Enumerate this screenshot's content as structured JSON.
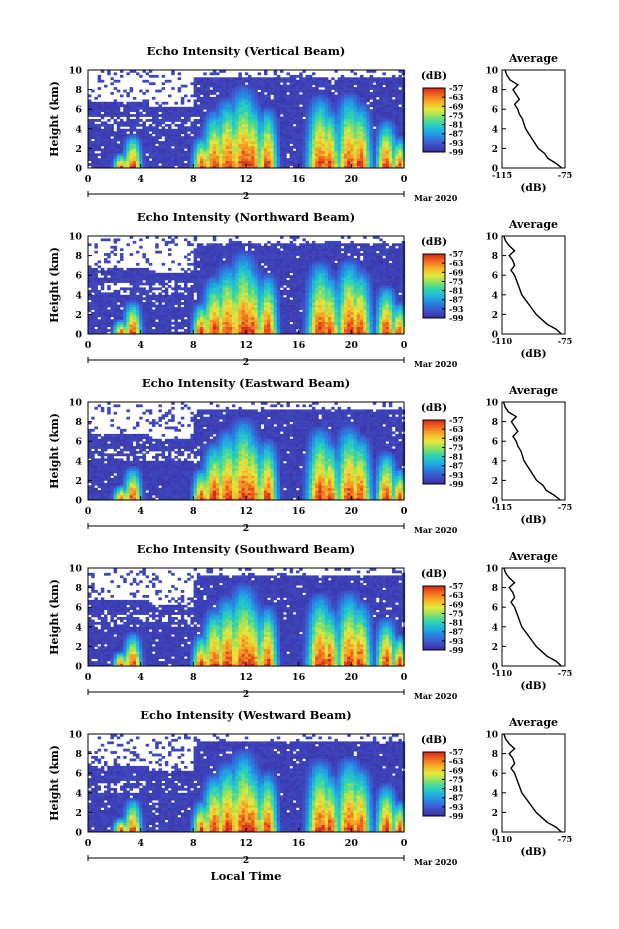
{
  "figure": {
    "x_axis_title": "Local Time",
    "date_label": "Mar 2020",
    "average_title": "Average",
    "colorbar_unit": "(dB)",
    "average_xlabel": "(dB)"
  },
  "colormap": [
    "#3a2ea0",
    "#3f4fc8",
    "#2a7fe0",
    "#1fb2e0",
    "#2fd6b0",
    "#8ee060",
    "#e6e83a",
    "#f7b02a",
    "#f26a20",
    "#d42818"
  ],
  "chart_data": [
    {
      "type": "heatmap",
      "title": "Echo Intensity (Vertical Beam)",
      "ylabel": "Height (km)",
      "x_ticks": [
        "0",
        "4",
        "8",
        "12",
        "16",
        "20",
        "0"
      ],
      "x_range": [
        0,
        24
      ],
      "y_ticks": [
        "0",
        "2",
        "4",
        "6",
        "8",
        "10"
      ],
      "ylim": [
        0,
        10
      ],
      "date_tick": "2",
      "colorbar": {
        "label": "(dB)",
        "ticks": [
          "-57",
          "-63",
          "-69",
          "-75",
          "-81",
          "-87",
          "-93",
          "-99"
        ],
        "range": [
          -99,
          -57
        ]
      },
      "plumes": [
        [
          2.5,
          1.6,
          0.5
        ],
        [
          3.4,
          3.6,
          0.6
        ],
        [
          8.6,
          3.4,
          0.6
        ],
        [
          9.6,
          6.2,
          0.8
        ],
        [
          10.6,
          7.5,
          0.9
        ],
        [
          11.8,
          8.8,
          1.0
        ],
        [
          12.4,
          7.2,
          0.8
        ],
        [
          13.6,
          6.5,
          0.7
        ],
        [
          17.6,
          7.8,
          0.9
        ],
        [
          18.3,
          6.4,
          0.7
        ],
        [
          19.8,
          8.0,
          0.9
        ],
        [
          20.6,
          7.0,
          0.8
        ],
        [
          22.6,
          5.2,
          0.7
        ],
        [
          23.6,
          3.4,
          0.5
        ]
      ],
      "average_profile": {
        "title": "Average",
        "xlabel": "(dB)",
        "x_ticks": [
          "-115",
          "-75"
        ],
        "xlim": [
          -115,
          -75
        ],
        "y_ticks": [
          "0",
          "2",
          "4",
          "6",
          "8",
          "10"
        ],
        "ylim": [
          0,
          10
        ],
        "height_km": [
          0,
          0.5,
          1,
          1.5,
          2,
          2.5,
          3,
          3.5,
          4,
          4.5,
          5,
          5.5,
          6,
          6.5,
          7,
          7.5,
          8,
          8.5,
          9,
          9.5,
          10
        ],
        "db": [
          -77,
          -81,
          -86,
          -88,
          -92,
          -94,
          -96,
          -98,
          -100,
          -101,
          -102,
          -104,
          -105,
          -107,
          -104,
          -106,
          -108,
          -105,
          -110,
          -112,
          -113
        ]
      }
    },
    {
      "type": "heatmap",
      "title": "Echo Intensity (Northward Beam)",
      "ylabel": "Height (km)",
      "x_ticks": [
        "0",
        "4",
        "8",
        "12",
        "16",
        "20",
        "0"
      ],
      "x_range": [
        0,
        24
      ],
      "y_ticks": [
        "0",
        "2",
        "4",
        "6",
        "8",
        "10"
      ],
      "ylim": [
        0,
        10
      ],
      "date_tick": "2",
      "colorbar": {
        "label": "(dB)",
        "ticks": [
          "-57",
          "-63",
          "-69",
          "-75",
          "-81",
          "-87",
          "-93",
          "-99"
        ],
        "range": [
          -99,
          -57
        ]
      },
      "plumes": [
        [
          2.5,
          1.6,
          0.5
        ],
        [
          3.4,
          3.6,
          0.6
        ],
        [
          8.6,
          3.4,
          0.6
        ],
        [
          9.6,
          6.2,
          0.8
        ],
        [
          10.6,
          7.5,
          0.9
        ],
        [
          11.8,
          8.8,
          1.0
        ],
        [
          12.4,
          7.2,
          0.8
        ],
        [
          13.6,
          6.5,
          0.7
        ],
        [
          17.6,
          7.8,
          0.9
        ],
        [
          18.3,
          6.4,
          0.7
        ],
        [
          19.8,
          8.0,
          0.9
        ],
        [
          20.6,
          7.0,
          0.8
        ],
        [
          22.6,
          5.2,
          0.7
        ],
        [
          23.6,
          3.4,
          0.5
        ]
      ],
      "average_profile": {
        "title": "Average",
        "xlabel": "(dB)",
        "x_ticks": [
          "-110",
          "-75"
        ],
        "xlim": [
          -110,
          -75
        ],
        "y_ticks": [
          "0",
          "2",
          "4",
          "6",
          "8",
          "10"
        ],
        "ylim": [
          0,
          10
        ],
        "height_km": [
          0,
          0.5,
          1,
          1.5,
          2,
          2.5,
          3,
          3.5,
          4,
          4.5,
          5,
          5.5,
          6,
          6.5,
          7,
          7.5,
          8,
          8.5,
          9,
          9.5,
          10
        ],
        "db": [
          -77,
          -80,
          -85,
          -88,
          -91,
          -93,
          -95,
          -97,
          -99,
          -100,
          -101,
          -102,
          -103,
          -105,
          -103,
          -104,
          -106,
          -103,
          -106,
          -108,
          -109
        ]
      }
    },
    {
      "type": "heatmap",
      "title": "Echo Intensity (Eastward Beam)",
      "ylabel": "Height (km)",
      "x_ticks": [
        "0",
        "4",
        "8",
        "12",
        "16",
        "20",
        "0"
      ],
      "x_range": [
        0,
        24
      ],
      "y_ticks": [
        "0",
        "2",
        "4",
        "6",
        "8",
        "10"
      ],
      "ylim": [
        0,
        10
      ],
      "date_tick": "2",
      "colorbar": {
        "label": "(dB)",
        "ticks": [
          "-57",
          "-63",
          "-69",
          "-75",
          "-81",
          "-87",
          "-93",
          "-99"
        ],
        "range": [
          -99,
          -57
        ]
      },
      "plumes": [
        [
          2.5,
          1.6,
          0.5
        ],
        [
          3.4,
          3.6,
          0.6
        ],
        [
          8.6,
          3.4,
          0.6
        ],
        [
          9.6,
          6.2,
          0.8
        ],
        [
          10.6,
          7.5,
          0.9
        ],
        [
          11.8,
          8.8,
          1.0
        ],
        [
          12.4,
          7.2,
          0.8
        ],
        [
          13.6,
          6.5,
          0.7
        ],
        [
          17.6,
          7.8,
          0.9
        ],
        [
          18.3,
          6.4,
          0.7
        ],
        [
          19.8,
          8.0,
          0.9
        ],
        [
          20.6,
          7.0,
          0.8
        ],
        [
          22.6,
          5.2,
          0.7
        ],
        [
          23.6,
          3.4,
          0.5
        ]
      ],
      "average_profile": {
        "title": "Average",
        "xlabel": "(dB)",
        "x_ticks": [
          "-115",
          "-75"
        ],
        "xlim": [
          -115,
          -75
        ],
        "y_ticks": [
          "0",
          "2",
          "4",
          "6",
          "8",
          "10"
        ],
        "ylim": [
          0,
          10
        ],
        "height_km": [
          0,
          0.5,
          1,
          1.5,
          2,
          2.5,
          3,
          3.5,
          4,
          4.5,
          5,
          5.5,
          6,
          6.5,
          7,
          7.5,
          8,
          8.5,
          9,
          9.5,
          10
        ],
        "db": [
          -78,
          -82,
          -87,
          -89,
          -93,
          -95,
          -97,
          -99,
          -101,
          -102,
          -103,
          -105,
          -106,
          -108,
          -105,
          -107,
          -109,
          -106,
          -111,
          -113,
          -114
        ]
      }
    },
    {
      "type": "heatmap",
      "title": "Echo Intensity (Southward Beam)",
      "ylabel": "Height (km)",
      "x_ticks": [
        "0",
        "4",
        "8",
        "12",
        "16",
        "20",
        "0"
      ],
      "x_range": [
        0,
        24
      ],
      "y_ticks": [
        "0",
        "2",
        "4",
        "6",
        "8",
        "10"
      ],
      "ylim": [
        0,
        10
      ],
      "date_tick": "2",
      "colorbar": {
        "label": "(dB)",
        "ticks": [
          "-57",
          "-63",
          "-69",
          "-75",
          "-81",
          "-87",
          "-93",
          "-99"
        ],
        "range": [
          -99,
          -57
        ]
      },
      "plumes": [
        [
          2.5,
          1.6,
          0.5
        ],
        [
          3.4,
          3.6,
          0.6
        ],
        [
          8.6,
          3.4,
          0.6
        ],
        [
          9.6,
          6.2,
          0.8
        ],
        [
          10.6,
          7.5,
          0.9
        ],
        [
          11.8,
          8.8,
          1.0
        ],
        [
          12.4,
          7.2,
          0.8
        ],
        [
          13.6,
          6.5,
          0.7
        ],
        [
          17.6,
          7.8,
          0.9
        ],
        [
          18.3,
          6.4,
          0.7
        ],
        [
          19.8,
          8.0,
          0.9
        ],
        [
          20.6,
          7.0,
          0.8
        ],
        [
          22.6,
          5.2,
          0.7
        ],
        [
          23.6,
          3.4,
          0.5
        ]
      ],
      "average_profile": {
        "title": "Average",
        "xlabel": "(dB)",
        "x_ticks": [
          "-110",
          "-75"
        ],
        "xlim": [
          -110,
          -75
        ],
        "y_ticks": [
          "0",
          "2",
          "4",
          "6",
          "8",
          "10"
        ],
        "ylim": [
          0,
          10
        ],
        "height_km": [
          0,
          0.5,
          1,
          1.5,
          2,
          2.5,
          3,
          3.5,
          4,
          4.5,
          5,
          5.5,
          6,
          6.5,
          7,
          7.5,
          8,
          8.5,
          9,
          9.5,
          10
        ],
        "db": [
          -77,
          -80,
          -85,
          -88,
          -91,
          -93,
          -95,
          -97,
          -99,
          -100,
          -101,
          -102,
          -103,
          -105,
          -103,
          -104,
          -106,
          -103,
          -106,
          -108,
          -109
        ]
      }
    },
    {
      "type": "heatmap",
      "title": "Echo Intensity (Westward Beam)",
      "ylabel": "Height (km)",
      "x_ticks": [
        "0",
        "4",
        "8",
        "12",
        "16",
        "20",
        "0"
      ],
      "x_range": [
        0,
        24
      ],
      "y_ticks": [
        "0",
        "2",
        "4",
        "6",
        "8",
        "10"
      ],
      "ylim": [
        0,
        10
      ],
      "date_tick": "2",
      "colorbar": {
        "label": "(dB)",
        "ticks": [
          "-57",
          "-63",
          "-69",
          "-75",
          "-81",
          "-87",
          "-93",
          "-99"
        ],
        "range": [
          -99,
          -57
        ]
      },
      "plumes": [
        [
          2.5,
          1.6,
          0.5
        ],
        [
          3.4,
          3.6,
          0.6
        ],
        [
          8.6,
          3.4,
          0.6
        ],
        [
          9.6,
          6.2,
          0.8
        ],
        [
          10.6,
          7.5,
          0.9
        ],
        [
          11.8,
          8.8,
          1.0
        ],
        [
          12.4,
          7.2,
          0.8
        ],
        [
          13.6,
          6.5,
          0.7
        ],
        [
          17.6,
          7.8,
          0.9
        ],
        [
          18.3,
          6.4,
          0.7
        ],
        [
          19.8,
          8.0,
          0.9
        ],
        [
          20.6,
          7.0,
          0.8
        ],
        [
          22.6,
          5.2,
          0.7
        ],
        [
          23.6,
          3.4,
          0.5
        ]
      ],
      "average_profile": {
        "title": "Average",
        "xlabel": "(dB)",
        "x_ticks": [
          "-110",
          "-75"
        ],
        "xlim": [
          -110,
          -75
        ],
        "y_ticks": [
          "0",
          "2",
          "4",
          "6",
          "8",
          "10"
        ],
        "ylim": [
          0,
          10
        ],
        "height_km": [
          0,
          0.5,
          1,
          1.5,
          2,
          2.5,
          3,
          3.5,
          4,
          4.5,
          5,
          5.5,
          6,
          6.5,
          7,
          7.5,
          8,
          8.5,
          9,
          9.5,
          10
        ],
        "db": [
          -77,
          -80,
          -85,
          -88,
          -91,
          -93,
          -95,
          -97,
          -99,
          -100,
          -101,
          -102,
          -103,
          -105,
          -103,
          -104,
          -106,
          -103,
          -106,
          -108,
          -109
        ]
      }
    }
  ]
}
